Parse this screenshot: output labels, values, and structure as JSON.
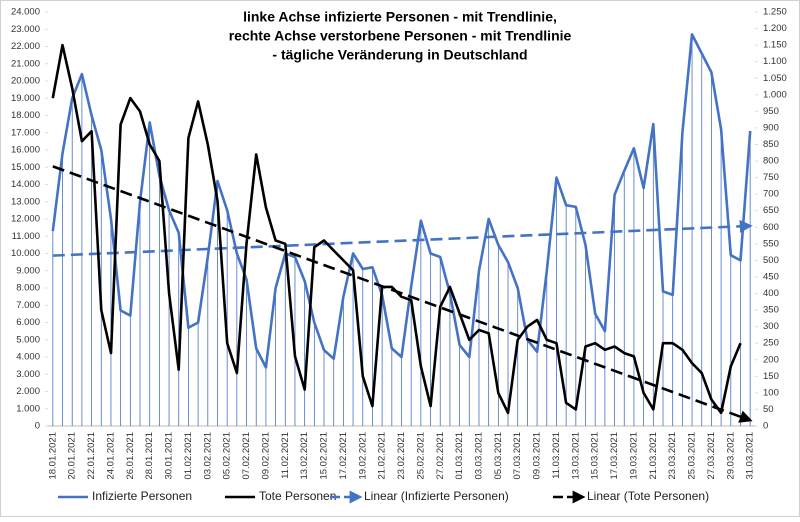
{
  "chart_data": {
    "type": "line",
    "title_lines": [
      "linke Achse infizierte Personen - mit Trendlinie,",
      "rechte Achse verstorbene Personen - mit Trendlinie",
      "- tägliche Veränderung in Deutschland"
    ],
    "categories": [
      "18.01.2021",
      null,
      "20.01.2021",
      null,
      "22.01.2021",
      null,
      "24.01.2021",
      null,
      "26.01.2021",
      null,
      "28.01.2021",
      null,
      "30.01.2021",
      null,
      "01.02.2021",
      null,
      "03.02.2021",
      null,
      "05.02.2021",
      null,
      "07.02.2021",
      null,
      "09.02.2021",
      null,
      "11.02.2021",
      null,
      "13.02.2021",
      null,
      "15.02.2021",
      null,
      "17.02.2021",
      null,
      "19.02.2021",
      null,
      "21.02.2021",
      null,
      "23.02.2021",
      null,
      "25.02.2021",
      null,
      "27.02.2021",
      null,
      "01.03.2021",
      null,
      "03.03.2021",
      null,
      "05.03.2021",
      null,
      "07.03.2021",
      null,
      "09.03.2021",
      null,
      "11.03.2021",
      null,
      "13.03.2021",
      null,
      "15.03.2021",
      null,
      "17.03.2021",
      null,
      "19.03.2021",
      null,
      "21.03.2021",
      null,
      "23.03.2021",
      null,
      "25.03.2021",
      null,
      "27.03.2021",
      null,
      "29.03.2021",
      null,
      "31.03.2021"
    ],
    "series": [
      {
        "name": "Infizierte Personen",
        "color": "#4472c4",
        "axis": "y",
        "trendline_name": "Linear (Infizierte Personen)",
        "drop_lines": true,
        "values": [
          11300,
          15800,
          19000,
          20400,
          18000,
          16000,
          12000,
          6700,
          6400,
          13000,
          17600,
          14500,
          12500,
          11200,
          5700,
          6000,
          9800,
          14200,
          12500,
          10000,
          8500,
          4500,
          3400,
          8000,
          10000,
          9800,
          8400,
          6000,
          4400,
          3900,
          7500,
          10000,
          9100,
          9200,
          7600,
          4500,
          4000,
          8100,
          11900,
          10000,
          9800,
          7700,
          4700,
          4000,
          9000,
          12000,
          10500,
          9500,
          8000,
          5000,
          4300,
          9000,
          14400,
          12800,
          12700,
          10500,
          6500,
          5500,
          13400,
          14800,
          16100,
          13800,
          17500,
          7800,
          7600,
          17000,
          22700,
          21600,
          20500,
          17200,
          9900,
          9600,
          17100
        ]
      },
      {
        "name": "Tote Personen",
        "color": "#000000",
        "axis": "y2",
        "trendline_name": "Linear (Tote Personen)",
        "values": [
          990,
          1150,
          1020,
          860,
          890,
          350,
          220,
          910,
          990,
          950,
          850,
          800,
          400,
          170,
          870,
          980,
          850,
          680,
          250,
          160,
          550,
          820,
          660,
          560,
          550,
          210,
          110,
          540,
          560,
          530,
          500,
          470,
          150,
          60,
          420,
          420,
          390,
          380,
          180,
          60,
          360,
          420,
          340,
          260,
          290,
          280,
          100,
          40,
          260,
          300,
          320,
          260,
          250,
          70,
          50,
          240,
          250,
          230,
          240,
          220,
          210,
          100,
          50,
          250,
          250,
          230,
          190,
          160,
          80,
          40,
          180,
          250,
          null
        ]
      }
    ],
    "ylim": [
      0,
      24000
    ],
    "yticks": [
      0,
      {
        "value": 1000,
        "label": "1.000"
      },
      {
        "value": 2000,
        "label": "2.000"
      },
      {
        "value": 3000,
        "label": "3.000"
      },
      {
        "value": 4000,
        "label": "4.000"
      },
      {
        "value": 5000,
        "label": "5.000"
      },
      {
        "value": 6000,
        "label": "6.000"
      },
      {
        "value": 7000,
        "label": "7.000"
      },
      {
        "value": 8000,
        "label": "8.000"
      },
      {
        "value": 9000,
        "label": "9.000"
      },
      {
        "value": 10000,
        "label": "10.000"
      },
      {
        "value": 11000,
        "label": "11.000"
      },
      {
        "value": 12000,
        "label": "12.000"
      },
      {
        "value": 13000,
        "label": "13.000"
      },
      {
        "value": 14000,
        "label": "14.000"
      },
      {
        "value": 15000,
        "label": "15.000"
      },
      {
        "value": 16000,
        "label": "16.000"
      },
      {
        "value": 17000,
        "label": "17.000"
      },
      {
        "value": 18000,
        "label": "18.000"
      },
      {
        "value": 19000,
        "label": "19.000"
      },
      {
        "value": 20000,
        "label": "20.000"
      },
      {
        "value": 21000,
        "label": "21.000"
      },
      {
        "value": 22000,
        "label": "22.000"
      },
      {
        "value": 23000,
        "label": "23.000"
      },
      {
        "value": 24000,
        "label": "24.000"
      }
    ],
    "y2lim": [
      0,
      1250
    ],
    "y2ticks": [
      0,
      50,
      100,
      150,
      200,
      250,
      300,
      350,
      400,
      450,
      500,
      550,
      600,
      650,
      700,
      750,
      800,
      850,
      900,
      950,
      {
        "value": 1000,
        "label": "1.000"
      },
      {
        "value": 1050,
        "label": "1.050"
      },
      {
        "value": 1100,
        "label": "1.100"
      },
      {
        "value": 1150,
        "label": "1.150"
      },
      {
        "value": 1200,
        "label": "1.200"
      },
      {
        "value": 1250,
        "label": "1.250"
      }
    ],
    "grid": false,
    "legend": "bottom"
  }
}
